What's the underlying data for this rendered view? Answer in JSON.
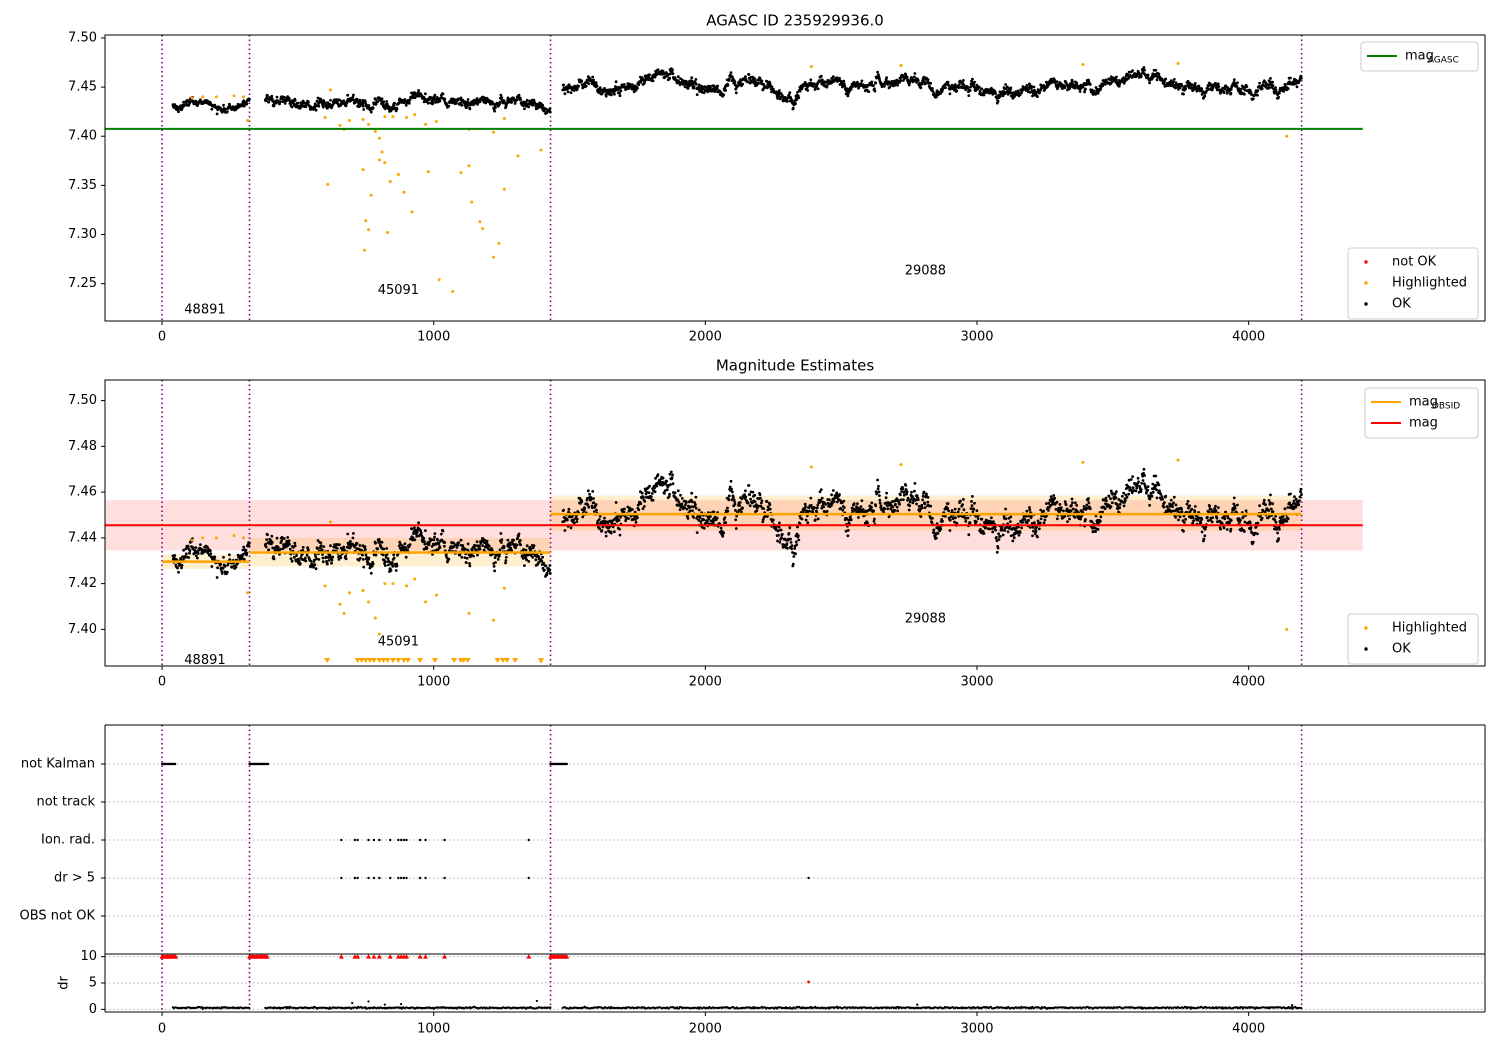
{
  "chart_data": [
    {
      "type": "scatter",
      "title": "AGASC ID 235929936.0",
      "xlim": [
        -210,
        4870
      ],
      "ylim": [
        7.212,
        7.503
      ],
      "xticks": [
        0,
        1000,
        2000,
        3000,
        4000
      ],
      "yticks": [
        7.25,
        7.3,
        7.35,
        7.4,
        7.45,
        7.5
      ],
      "ytick_labels": [
        "7.25",
        "7.30",
        "7.35",
        "7.40",
        "7.45",
        "7.50"
      ],
      "obs_boundaries": [
        0,
        322,
        1430,
        4195
      ],
      "obs_labels": [
        {
          "text": "48891",
          "x": 158,
          "y": 7.223
        },
        {
          "text": "45091",
          "x": 870,
          "y": 7.243
        },
        {
          "text": "29088",
          "x": 2810,
          "y": 7.263
        }
      ],
      "lines": [
        {
          "name": "mag_AGASC",
          "y": 7.4075,
          "x": [
            -210,
            4420
          ],
          "color": "#008000"
        }
      ],
      "legends": [
        {
          "position": "upper right",
          "items": [
            {
              "text": "mag",
              "sub": "AGASC",
              "kind": "line",
              "color": "#008000"
            }
          ]
        },
        {
          "position": "lower right",
          "items": [
            {
              "text": "not OK",
              "kind": "point",
              "color": "#ff0000"
            },
            {
              "text": "Highlighted",
              "kind": "point",
              "color": "#ffa500"
            },
            {
              "text": "OK",
              "kind": "point",
              "color": "#000000"
            }
          ]
        }
      ],
      "ok_segments": [
        {
          "x": [
            40,
            322
          ],
          "mean": 7.43,
          "spread": 0.0045
        },
        {
          "x": [
            380,
            1430
          ],
          "mean": 7.434,
          "spread": 0.0055
        },
        {
          "x": [
            1475,
            4195
          ],
          "mean": 7.451,
          "spread": 0.0065
        }
      ],
      "highlighted_points": [
        [
          110,
          7.439
        ],
        [
          150,
          7.44
        ],
        [
          200,
          7.44
        ],
        [
          265,
          7.441
        ],
        [
          300,
          7.44
        ],
        [
          315,
          7.416
        ],
        [
          620,
          7.447
        ],
        [
          600,
          7.419
        ],
        [
          655,
          7.411
        ],
        [
          670,
          7.407
        ],
        [
          690,
          7.416
        ],
        [
          740,
          7.417
        ],
        [
          760,
          7.412
        ],
        [
          785,
          7.405
        ],
        [
          800,
          7.398
        ],
        [
          820,
          7.42
        ],
        [
          850,
          7.42
        ],
        [
          900,
          7.419
        ],
        [
          930,
          7.422
        ],
        [
          970,
          7.412
        ],
        [
          1010,
          7.415
        ],
        [
          1130,
          7.407
        ],
        [
          1220,
          7.404
        ],
        [
          1260,
          7.418
        ],
        [
          1395,
          7.386
        ],
        [
          610,
          7.351
        ],
        [
          740,
          7.366
        ],
        [
          770,
          7.34
        ],
        [
          800,
          7.376
        ],
        [
          810,
          7.384
        ],
        [
          820,
          7.373
        ],
        [
          840,
          7.354
        ],
        [
          870,
          7.361
        ],
        [
          890,
          7.343
        ],
        [
          920,
          7.323
        ],
        [
          980,
          7.364
        ],
        [
          1100,
          7.363
        ],
        [
          1130,
          7.37
        ],
        [
          1140,
          7.333
        ],
        [
          1170,
          7.313
        ],
        [
          1180,
          7.306
        ],
        [
          1260,
          7.346
        ],
        [
          1310,
          7.38
        ],
        [
          1240,
          7.291
        ],
        [
          1220,
          7.277
        ],
        [
          750,
          7.314
        ],
        [
          760,
          7.305
        ],
        [
          745,
          7.284
        ],
        [
          830,
          7.302
        ],
        [
          1020,
          7.254
        ],
        [
          1070,
          7.242
        ],
        [
          4140,
          7.4
        ],
        [
          2390,
          7.471
        ],
        [
          2720,
          7.472
        ],
        [
          3390,
          7.473
        ],
        [
          3740,
          7.474
        ]
      ],
      "not_ok_points": []
    },
    {
      "type": "scatter",
      "title": "Magnitude Estimates",
      "xlim": [
        -210,
        4870
      ],
      "ylim": [
        7.384,
        7.509
      ],
      "xticks": [
        0,
        1000,
        2000,
        3000,
        4000
      ],
      "yticks": [
        7.4,
        7.42,
        7.44,
        7.46,
        7.48,
        7.5
      ],
      "ytick_labels": [
        "7.40",
        "7.42",
        "7.44",
        "7.46",
        "7.48",
        "7.50"
      ],
      "obs_boundaries": [
        0,
        322,
        1430,
        4195
      ],
      "obs_labels": [
        {
          "text": "48891",
          "x": 158,
          "y": 7.3865
        },
        {
          "text": "45091",
          "x": 870,
          "y": 7.3945
        },
        {
          "text": "29088",
          "x": 2810,
          "y": 7.4045
        }
      ],
      "mag": {
        "y": 7.4455,
        "band": [
          7.4345,
          7.4565
        ],
        "x": [
          -210,
          4420
        ],
        "color": "#ff0000"
      },
      "mag_obsid": [
        {
          "x": [
            0,
            322
          ],
          "y": 7.4296,
          "band": [
            7.4265,
            7.4328
          ]
        },
        {
          "x": [
            322,
            1430
          ],
          "y": 7.4336,
          "band": [
            7.4275,
            7.44
          ]
        },
        {
          "x": [
            1430,
            4195
          ],
          "y": 7.4504,
          "band": [
            7.443,
            7.4585
          ]
        }
      ],
      "legends": [
        {
          "position": "upper right",
          "items": [
            {
              "text": "mag",
              "sub": "OBSID",
              "kind": "line",
              "color": "#ffa500"
            },
            {
              "text": "mag",
              "kind": "line",
              "color": "#ff0000"
            }
          ]
        },
        {
          "position": "lower right",
          "items": [
            {
              "text": "Highlighted",
              "kind": "point",
              "color": "#ffa500"
            },
            {
              "text": "OK",
              "kind": "point",
              "color": "#000000"
            }
          ]
        }
      ],
      "ok_segments": [
        {
          "x": [
            40,
            322
          ],
          "mean": 7.43,
          "spread": 0.0045
        },
        {
          "x": [
            380,
            1430
          ],
          "mean": 7.434,
          "spread": 0.0055
        },
        {
          "x": [
            1475,
            4195
          ],
          "mean": 7.451,
          "spread": 0.0065
        }
      ],
      "highlighted_points": [
        [
          110,
          7.439
        ],
        [
          150,
          7.44
        ],
        [
          200,
          7.44
        ],
        [
          265,
          7.441
        ],
        [
          300,
          7.44
        ],
        [
          315,
          7.416
        ],
        [
          620,
          7.447
        ],
        [
          600,
          7.419
        ],
        [
          655,
          7.411
        ],
        [
          670,
          7.407
        ],
        [
          690,
          7.416
        ],
        [
          740,
          7.417
        ],
        [
          760,
          7.412
        ],
        [
          785,
          7.405
        ],
        [
          800,
          7.398
        ],
        [
          820,
          7.42
        ],
        [
          850,
          7.42
        ],
        [
          900,
          7.419
        ],
        [
          930,
          7.422
        ],
        [
          970,
          7.412
        ],
        [
          1010,
          7.415
        ],
        [
          1130,
          7.407
        ],
        [
          1220,
          7.404
        ],
        [
          1260,
          7.418
        ],
        [
          1395,
          7.386
        ],
        [
          2390,
          7.471
        ],
        [
          2720,
          7.472
        ],
        [
          3390,
          7.473
        ],
        [
          3740,
          7.474
        ],
        [
          4140,
          7.4
        ]
      ],
      "below_range_markers_x": [
        608,
        720,
        735,
        750,
        765,
        780,
        800,
        815,
        830,
        850,
        870,
        890,
        905,
        950,
        1005,
        1075,
        1100,
        1110,
        1125,
        1235,
        1255,
        1270,
        1300,
        1395
      ]
    },
    {
      "type": "scatter",
      "title": "",
      "xlim": [
        -210,
        4870
      ],
      "xticks": [
        0,
        1000,
        2000,
        3000,
        4000
      ],
      "obs_boundaries": [
        0,
        322,
        1430,
        4195
      ],
      "flag_rows": [
        "not Kalman",
        "not track",
        "Ion. rad.",
        "dr > 5",
        "OBS not OK"
      ],
      "flag_points": {
        "not Kalman": [
          [
            0,
            50
          ],
          [
            322,
            390
          ],
          [
            1430,
            1490
          ]
        ],
        "not track": [],
        "Ion. rad.": [
          660,
          710,
          720,
          760,
          780,
          800,
          840,
          870,
          880,
          890,
          900,
          950,
          970,
          1040,
          1350
        ],
        "dr > 5": [
          660,
          710,
          720,
          760,
          780,
          800,
          840,
          870,
          880,
          890,
          900,
          950,
          970,
          1040,
          1350,
          2380
        ],
        "OBS not OK": []
      },
      "dr": {
        "ylabel": "dr",
        "ylim": [
          -0.5,
          10.5
        ],
        "yticks": [
          0,
          5,
          10
        ],
        "ytick_labels": [
          "0",
          "5",
          "10"
        ],
        "capped_at_10_x": [
          [
            0,
            50
          ],
          [
            322,
            390
          ],
          [
            1430,
            1490
          ]
        ],
        "capped_single_x": [
          660,
          710,
          720,
          760,
          780,
          800,
          840,
          870,
          880,
          890,
          900,
          950,
          970,
          1040,
          1350
        ],
        "outlier": [
          2380,
          5.2
        ],
        "typical": 0.3
      }
    }
  ]
}
